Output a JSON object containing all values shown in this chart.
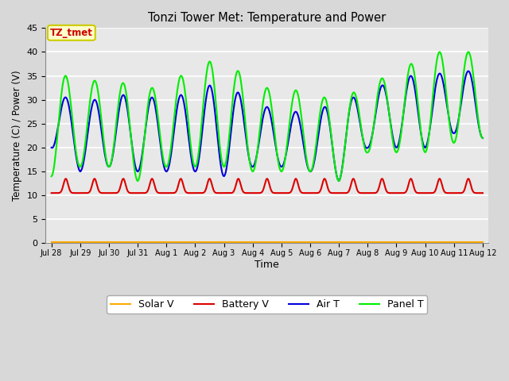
{
  "title": "Tonzi Tower Met: Temperature and Power",
  "xlabel": "Time",
  "ylabel": "Temperature (C) / Power (V)",
  "ylim": [
    0,
    45
  ],
  "yticks": [
    0,
    5,
    10,
    15,
    20,
    25,
    30,
    35,
    40,
    45
  ],
  "annotation_text": "TZ_tmet",
  "annotation_color": "#cc0000",
  "annotation_bg": "#ffffcc",
  "annotation_border": "#cccc00",
  "outer_bg": "#d8d8d8",
  "plot_bg": "#e8e8e8",
  "grid_color": "#ffffff",
  "legend_entries": [
    "Panel T",
    "Battery V",
    "Air T",
    "Solar V"
  ],
  "legend_colors": [
    "#00ee00",
    "#dd0000",
    "#0000dd",
    "#ffaa00"
  ],
  "line_width": 1.5,
  "x_tick_labels": [
    "Jul 28",
    "Jul 29",
    "Jul 30",
    "Jul 31",
    "Aug 1",
    "Aug 2",
    "Aug 3",
    "Aug 4",
    "Aug 5",
    "Aug 6",
    "Aug 7",
    "Aug 8",
    "Aug 9",
    "Aug 10",
    "Aug 11",
    "Aug 12"
  ]
}
